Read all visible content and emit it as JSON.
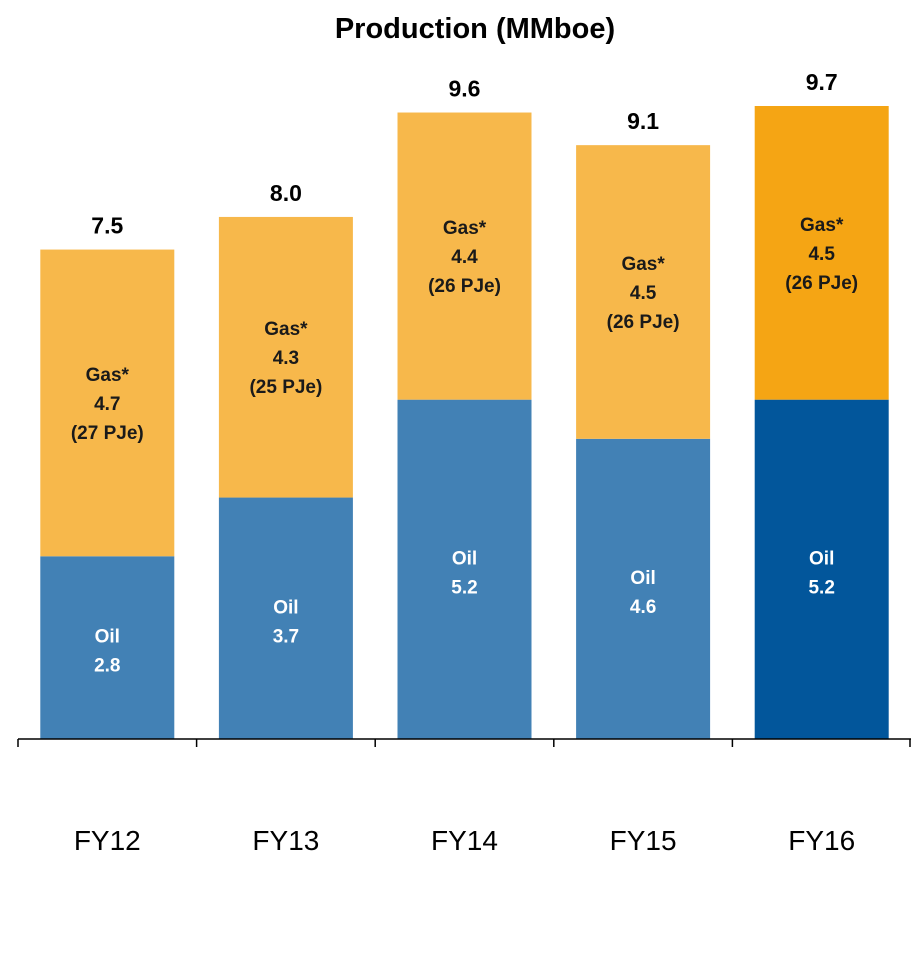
{
  "chart_data": {
    "type": "bar",
    "stacked": true,
    "title": "Production (MMboe)",
    "categories": [
      "FY12",
      "FY13",
      "FY14",
      "FY15",
      "FY16"
    ],
    "totals": [
      "7.5",
      "8.0",
      "9.6",
      "9.1",
      "9.7"
    ],
    "ylim": [
      0,
      9.7
    ],
    "series": [
      {
        "key": "oil",
        "label": "Oil",
        "values": [
          2.8,
          3.7,
          5.2,
          4.6,
          5.2
        ],
        "color": "#4281B5",
        "highlight_color": "#02569B"
      },
      {
        "key": "gas",
        "label": "Gas*",
        "values": [
          4.7,
          4.3,
          4.4,
          4.5,
          4.5
        ],
        "pje": [
          "(27 PJe)",
          "(25 PJe)",
          "(26 PJe)",
          "(26 PJe)",
          "(26 PJe)"
        ],
        "color": "#F7B84B",
        "highlight_color": "#F5A514"
      }
    ],
    "highlight_index": 4,
    "grid": false,
    "legend": "none"
  }
}
